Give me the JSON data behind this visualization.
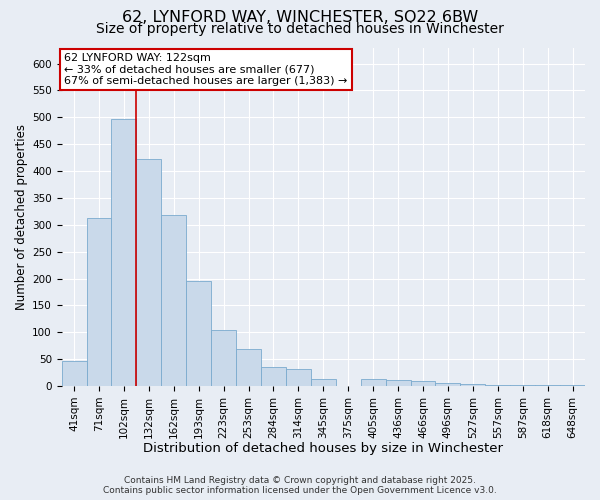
{
  "title_line1": "62, LYNFORD WAY, WINCHESTER, SO22 6BW",
  "title_line2": "Size of property relative to detached houses in Winchester",
  "xlabel": "Distribution of detached houses by size in Winchester",
  "ylabel": "Number of detached properties",
  "categories": [
    "41sqm",
    "71sqm",
    "102sqm",
    "132sqm",
    "162sqm",
    "193sqm",
    "223sqm",
    "253sqm",
    "284sqm",
    "314sqm",
    "345sqm",
    "375sqm",
    "405sqm",
    "436sqm",
    "466sqm",
    "496sqm",
    "527sqm",
    "557sqm",
    "587sqm",
    "618sqm",
    "648sqm"
  ],
  "values": [
    46,
    313,
    497,
    422,
    319,
    195,
    105,
    69,
    36,
    31,
    13,
    0,
    13,
    12,
    9,
    5,
    3,
    1,
    1,
    1,
    1
  ],
  "bar_color": "#c9d9ea",
  "bar_edge_color": "#7aaace",
  "background_color": "#e8edf4",
  "grid_color": "#ffffff",
  "ylim": [
    0,
    630
  ],
  "yticks": [
    0,
    50,
    100,
    150,
    200,
    250,
    300,
    350,
    400,
    450,
    500,
    550,
    600
  ],
  "vline_x_index": 2.5,
  "vline_color": "#cc0000",
  "annotation_text_line1": "62 LYNFORD WAY: 122sqm",
  "annotation_text_line2": "← 33% of detached houses are smaller (677)",
  "annotation_text_line3": "67% of semi-detached houses are larger (1,383) →",
  "annotation_box_color": "#ffffff",
  "annotation_box_edge_color": "#cc0000",
  "footer_line1": "Contains HM Land Registry data © Crown copyright and database right 2025.",
  "footer_line2": "Contains public sector information licensed under the Open Government Licence v3.0.",
  "title_fontsize": 11.5,
  "subtitle_fontsize": 10,
  "xlabel_fontsize": 9.5,
  "ylabel_fontsize": 8.5,
  "tick_fontsize": 7.5,
  "annotation_fontsize": 8,
  "footer_fontsize": 6.5
}
